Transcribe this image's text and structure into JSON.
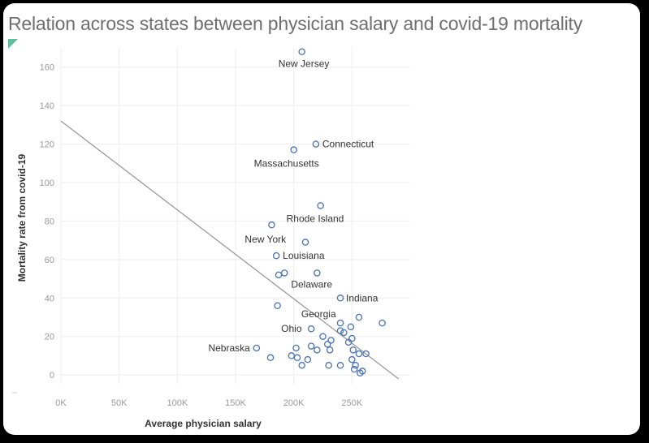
{
  "chart_data": {
    "type": "scatter",
    "title": "Relation across states between physician salary and covid-19 mortality",
    "xlabel": "Average physician salary",
    "ylabel": "Mortality rate from covid-19",
    "xlim": [
      0,
      300000
    ],
    "ylim": [
      -5,
      170
    ],
    "x_ticks": [
      0,
      50000,
      100000,
      150000,
      200000,
      250000
    ],
    "x_tick_labels": [
      "0K",
      "50K",
      "100K",
      "150K",
      "200K",
      "250K"
    ],
    "y_ticks": [
      0,
      20,
      40,
      60,
      80,
      100,
      120,
      140,
      160
    ],
    "y_tick_labels": [
      "0",
      "20",
      "40",
      "60",
      "80",
      "100",
      "120",
      "140",
      "160"
    ],
    "gridlines": true,
    "trend_line": {
      "x1": 0,
      "y1": 132,
      "x2": 290000,
      "y2": -2
    },
    "colors": {
      "marker": "#4a72b5",
      "trend": "#9a9a9a",
      "grid": "#eeeeee"
    },
    "points": [
      {
        "x": 207000,
        "y": 168,
        "label": "New Jersey"
      },
      {
        "x": 219000,
        "y": 120,
        "label": "Connecticut"
      },
      {
        "x": 200000,
        "y": 117,
        "label": "Massachusetts"
      },
      {
        "x": 223000,
        "y": 88,
        "label": "Rhode Island"
      },
      {
        "x": 181000,
        "y": 78,
        "label": "New York"
      },
      {
        "x": 210000,
        "y": 69,
        "label": ""
      },
      {
        "x": 185000,
        "y": 62,
        "label": "Louisiana"
      },
      {
        "x": 187000,
        "y": 52,
        "label": ""
      },
      {
        "x": 192000,
        "y": 53,
        "label": ""
      },
      {
        "x": 220000,
        "y": 53,
        "label": "Delaware"
      },
      {
        "x": 240000,
        "y": 40,
        "label": "Indiana"
      },
      {
        "x": 186000,
        "y": 36,
        "label": ""
      },
      {
        "x": 256000,
        "y": 30,
        "label": "Georgia"
      },
      {
        "x": 276000,
        "y": 27,
        "label": ""
      },
      {
        "x": 240000,
        "y": 27,
        "label": ""
      },
      {
        "x": 249000,
        "y": 25,
        "label": ""
      },
      {
        "x": 215000,
        "y": 24,
        "label": "Ohio"
      },
      {
        "x": 240000,
        "y": 23,
        "label": ""
      },
      {
        "x": 243000,
        "y": 22,
        "label": ""
      },
      {
        "x": 225000,
        "y": 20,
        "label": ""
      },
      {
        "x": 250000,
        "y": 19,
        "label": ""
      },
      {
        "x": 247000,
        "y": 17,
        "label": ""
      },
      {
        "x": 232000,
        "y": 18,
        "label": ""
      },
      {
        "x": 229000,
        "y": 16,
        "label": ""
      },
      {
        "x": 215000,
        "y": 15,
        "label": ""
      },
      {
        "x": 168000,
        "y": 14,
        "label": "Nebraska"
      },
      {
        "x": 202000,
        "y": 14,
        "label": ""
      },
      {
        "x": 220000,
        "y": 13,
        "label": ""
      },
      {
        "x": 231000,
        "y": 13,
        "label": ""
      },
      {
        "x": 251000,
        "y": 13,
        "label": ""
      },
      {
        "x": 256000,
        "y": 11,
        "label": ""
      },
      {
        "x": 262000,
        "y": 11,
        "label": ""
      },
      {
        "x": 198000,
        "y": 10,
        "label": ""
      },
      {
        "x": 203000,
        "y": 9,
        "label": ""
      },
      {
        "x": 180000,
        "y": 9,
        "label": ""
      },
      {
        "x": 212000,
        "y": 8,
        "label": ""
      },
      {
        "x": 250000,
        "y": 8,
        "label": ""
      },
      {
        "x": 253000,
        "y": 5,
        "label": ""
      },
      {
        "x": 207000,
        "y": 5,
        "label": ""
      },
      {
        "x": 230000,
        "y": 5,
        "label": ""
      },
      {
        "x": 240000,
        "y": 5,
        "label": ""
      },
      {
        "x": 252000,
        "y": 3,
        "label": ""
      },
      {
        "x": 259000,
        "y": 2,
        "label": ""
      },
      {
        "x": 257000,
        "y": 1,
        "label": ""
      }
    ]
  }
}
